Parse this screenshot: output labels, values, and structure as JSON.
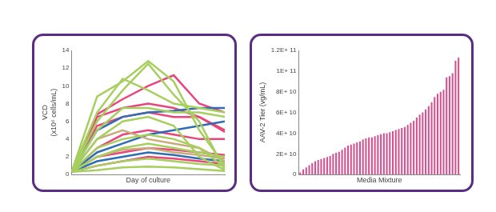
{
  "chart_data": [
    {
      "type": "line",
      "x_label": "Day of culture",
      "y_label": [
        "VCD",
        "(x10⁶ cells/mL)"
      ],
      "x": [
        0,
        1,
        2,
        3,
        4,
        5,
        6
      ],
      "xlim": [
        0,
        6
      ],
      "ylim": [
        0,
        14
      ],
      "yticks": [
        0,
        2,
        4,
        6,
        8,
        10,
        12,
        14
      ],
      "grid": false,
      "tick_labels": "y",
      "series": [
        {
          "color": "#a6cf5f",
          "values": [
            0.3,
            8.8,
            10.5,
            12.8,
            10.5,
            5.0,
            1.0
          ]
        },
        {
          "color": "#a6cf5f",
          "values": [
            0.3,
            7.0,
            10.8,
            9.5,
            8.0,
            7.5,
            7.0
          ]
        },
        {
          "color": "#a6cf5f",
          "values": [
            0.3,
            6.0,
            9.5,
            12.5,
            9.0,
            6.0,
            0.5
          ]
        },
        {
          "color": "#a6cf5f",
          "values": [
            0.3,
            5.0,
            7.5,
            7.5,
            7.0,
            7.0,
            6.5
          ]
        },
        {
          "color": "#a6cf5f",
          "values": [
            0.3,
            4.0,
            6.0,
            6.5,
            5.5,
            2.0,
            0.5
          ]
        },
        {
          "color": "#a6cf5f",
          "values": [
            0.3,
            2.0,
            3.0,
            3.5,
            3.0,
            2.5,
            2.0
          ]
        },
        {
          "color": "#a6cf5f",
          "values": [
            0.3,
            1.0,
            1.5,
            1.8,
            1.5,
            1.2,
            1.0
          ]
        },
        {
          "color": "#a6cf5f",
          "values": [
            0.3,
            0.5,
            0.8,
            0.9,
            0.8,
            0.6,
            0.4
          ]
        },
        {
          "color": "#a6cf5f",
          "values": [
            0.3,
            3.0,
            4.0,
            4.5,
            4.0,
            3.0,
            0.8
          ]
        },
        {
          "color": "#c9ab7c",
          "values": [
            0.3,
            4.0,
            5.0,
            4.0,
            3.5,
            3.0,
            1.5
          ]
        },
        {
          "color": "#c9ab7c",
          "values": [
            0.3,
            2.0,
            2.8,
            3.0,
            2.5,
            2.2,
            1.8
          ]
        },
        {
          "color": "#2f6db3",
          "values": [
            0.3,
            2.5,
            3.5,
            4.5,
            5.0,
            5.5,
            6.0
          ]
        },
        {
          "color": "#2f6db3",
          "values": [
            0.3,
            5.0,
            6.5,
            7.0,
            7.2,
            7.5,
            7.5
          ]
        },
        {
          "color": "#2f6db3",
          "values": [
            0.3,
            1.5,
            2.0,
            2.5,
            2.2,
            1.8,
            1.5
          ]
        },
        {
          "color": "#e8457c",
          "values": [
            0.3,
            6.8,
            8.5,
            10.0,
            11.2,
            8.0,
            7.0
          ]
        },
        {
          "color": "#e8457c",
          "values": [
            0.3,
            6.5,
            7.5,
            8.0,
            7.5,
            6.5,
            5.0
          ]
        },
        {
          "color": "#e8457c",
          "values": [
            0.3,
            5.5,
            6.5,
            7.0,
            6.5,
            6.5,
            4.8
          ]
        },
        {
          "color": "#e8457c",
          "values": [
            0.3,
            3.0,
            4.5,
            5.0,
            4.5,
            4.0,
            4.0
          ]
        },
        {
          "color": "#e8457c",
          "values": [
            0.3,
            2.0,
            2.5,
            3.0,
            2.8,
            2.5,
            2.2
          ]
        },
        {
          "color": "#e8457c",
          "values": [
            0.3,
            1.0,
            1.5,
            2.0,
            1.8,
            1.5,
            1.2
          ]
        }
      ]
    },
    {
      "type": "bar",
      "x_label": "Media Mixture",
      "y_label": "AAV-2 Tier (vg/mL)",
      "categories": [
        null,
        null,
        null,
        null,
        null,
        null,
        null,
        null,
        null,
        null,
        null,
        null,
        null,
        null,
        null,
        null,
        null,
        null,
        null,
        null,
        null,
        null,
        null,
        null,
        null,
        null,
        null,
        null,
        null,
        null,
        null,
        null,
        null,
        null,
        null,
        null,
        null,
        null,
        null,
        null,
        null,
        null,
        null,
        null,
        null,
        null,
        null,
        null,
        null,
        null,
        null,
        null,
        null,
        null
      ],
      "values": [
        2000000000.0,
        5000000000.0,
        7000000000.0,
        9000000000.0,
        11000000000.0,
        13000000000.0,
        14000000000.0,
        15000000000.0,
        16000000000.0,
        17000000000.0,
        18000000000.0,
        20000000000.0,
        21000000000.0,
        22000000000.0,
        24000000000.0,
        26000000000.0,
        28000000000.0,
        29000000000.0,
        30000000000.0,
        31000000000.0,
        32000000000.0,
        34000000000.0,
        35000000000.0,
        36000000000.0,
        36000000000.0,
        37000000000.0,
        38000000000.0,
        39000000000.0,
        40000000000.0,
        40000000000.0,
        41000000000.0,
        42000000000.0,
        43000000000.0,
        44000000000.0,
        45000000000.0,
        46000000000.0,
        48000000000.0,
        50000000000.0,
        52000000000.0,
        55000000000.0,
        58000000000.0,
        60000000000.0,
        63000000000.0,
        66000000000.0,
        70000000000.0,
        75000000000.0,
        78000000000.0,
        80000000000.0,
        82000000000.0,
        94000000000.0,
        95000000000.0,
        98000000000.0,
        110000000000.0,
        113000000000.0
      ],
      "color": "#d4508f",
      "ylim": [
        0,
        120000000000.0
      ],
      "yticks": [
        0,
        {
          "value": 20000000000.0,
          "label": "2E+ 10"
        },
        {
          "value": 40000000000.0,
          "label": "4E+ 10"
        },
        {
          "value": 60000000000.0,
          "label": "6E+ 10"
        },
        {
          "value": 80000000000.0,
          "label": "8E+ 10"
        },
        {
          "value": 100000000000.0,
          "label": "1E+ 11"
        },
        {
          "value": 120000000000.0,
          "label": "1.2E+ 11"
        }
      ],
      "grid": false,
      "tick_labels": "y"
    }
  ]
}
